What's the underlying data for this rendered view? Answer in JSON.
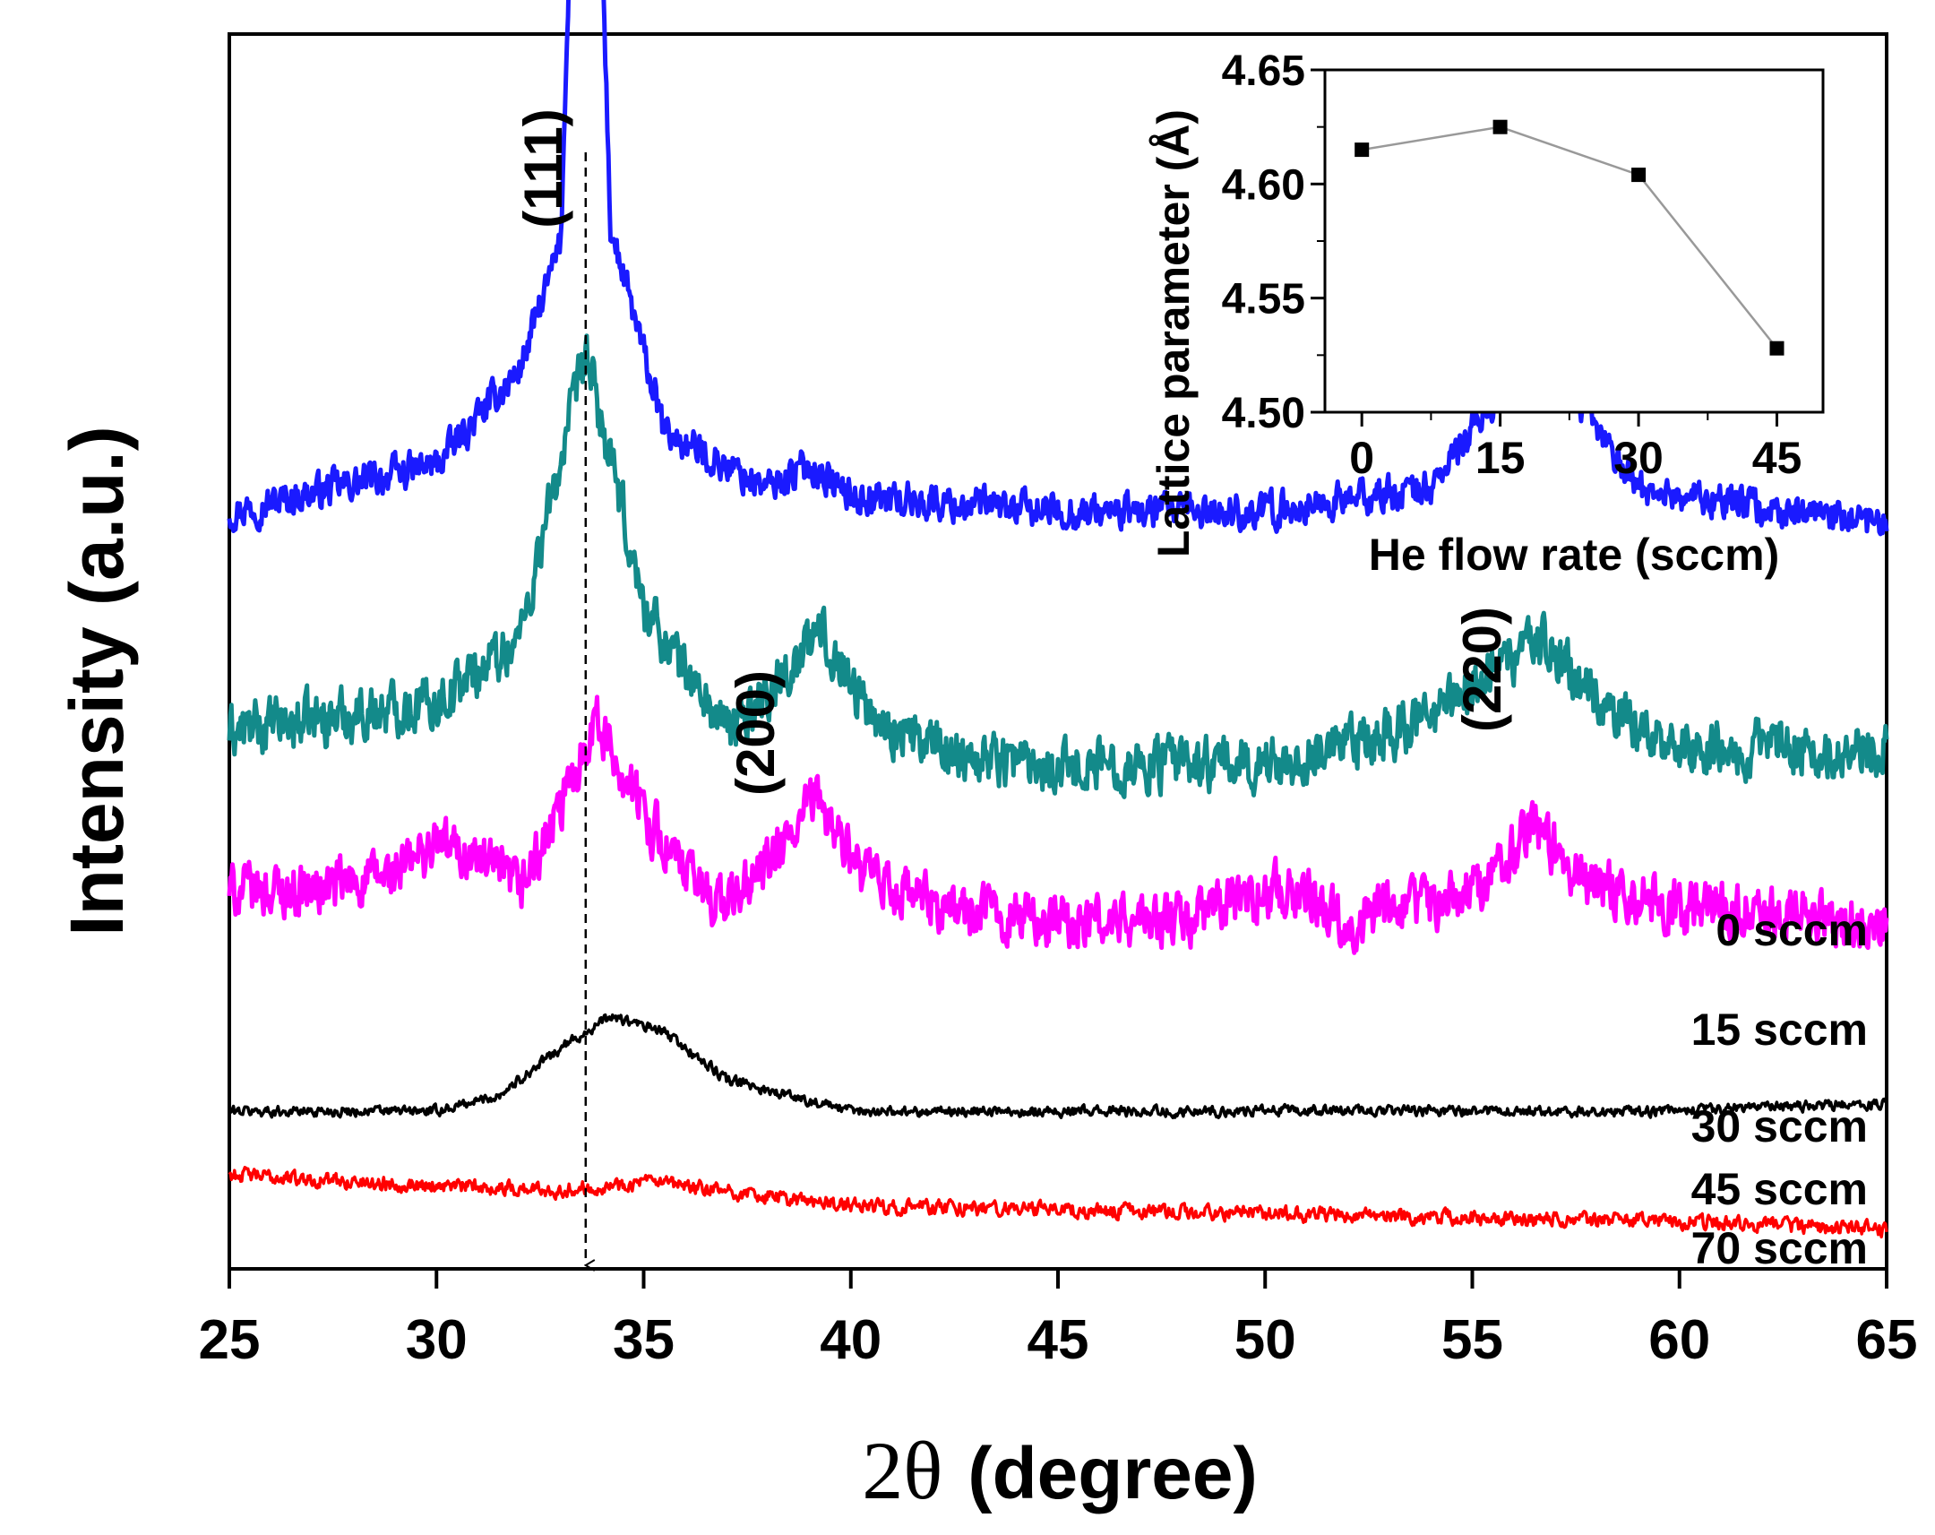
{
  "chart_data": [
    {
      "type": "line",
      "role": "main",
      "title": "",
      "xlabel_symbol": "2θ",
      "xlabel_text": "(degree)",
      "ylabel": "Intensity (a.u.)",
      "xlim": [
        25,
        65
      ],
      "xticks": [
        25,
        30,
        35,
        40,
        45,
        50,
        55,
        60,
        65
      ],
      "yticks": [],
      "grid": false,
      "peak_labels": [
        {
          "text": "(111)",
          "x": 33.6
        },
        {
          "text": "(200)",
          "x": 38.4
        },
        {
          "text": "(220)",
          "x": 55.7
        }
      ],
      "reference_line": {
        "x": 33.6,
        "style": "dashed-arrow"
      },
      "series": [
        {
          "name": "0 sccm",
          "color": "#1a1aff",
          "offset": 48,
          "noise": 1.7,
          "baseline": [
            [
              25,
              0
            ],
            [
              30,
              3
            ],
            [
              32,
              9
            ],
            [
              33,
              17
            ],
            [
              33.6,
              70
            ],
            [
              34.2,
              18
            ],
            [
              35.5,
              5
            ],
            [
              38,
              1.5
            ],
            [
              39,
              3
            ],
            [
              40,
              1
            ],
            [
              45,
              0
            ],
            [
              50,
              0
            ],
            [
              54,
              1.5
            ],
            [
              55.5,
              7
            ],
            [
              56.6,
              22
            ],
            [
              57.5,
              7
            ],
            [
              59,
              1.5
            ],
            [
              65,
              -1
            ]
          ]
        },
        {
          "name": "15 sccm",
          "color": "#138a8a",
          "offset": 34,
          "noise": 2.6,
          "baseline": [
            [
              25,
              0
            ],
            [
              30,
              2
            ],
            [
              32,
              6
            ],
            [
              33.6,
              24
            ],
            [
              35,
              8
            ],
            [
              37,
              0
            ],
            [
              38.5,
              4
            ],
            [
              39.3,
              6.5
            ],
            [
              40.5,
              1
            ],
            [
              42,
              -1
            ],
            [
              45,
              -2
            ],
            [
              50,
              -2
            ],
            [
              52,
              -1
            ],
            [
              54,
              1
            ],
            [
              55.5,
              4
            ],
            [
              56.6,
              6
            ],
            [
              58,
              2
            ],
            [
              60,
              -1
            ],
            [
              65,
              -1
            ]
          ]
        },
        {
          "name": "30 sccm",
          "color": "#ff00ff",
          "offset": 24,
          "noise": 2.6,
          "baseline": [
            [
              25,
              0
            ],
            [
              27,
              0
            ],
            [
              29,
              1
            ],
            [
              30,
              3
            ],
            [
              31,
              2
            ],
            [
              32,
              0
            ],
            [
              33,
              5
            ],
            [
              33.8,
              11
            ],
            [
              35,
              5
            ],
            [
              36,
              1
            ],
            [
              37,
              -1
            ],
            [
              38.5,
              3
            ],
            [
              39.2,
              6
            ],
            [
              40.2,
              1
            ],
            [
              42,
              -1
            ],
            [
              45,
              -2
            ],
            [
              48,
              -2
            ],
            [
              50,
              0
            ],
            [
              51,
              0
            ],
            [
              52,
              -2
            ],
            [
              55,
              0
            ],
            [
              56.5,
              4
            ],
            [
              57.5,
              1
            ],
            [
              60,
              -1
            ],
            [
              65,
              -2
            ]
          ]
        },
        {
          "name": "45 sccm",
          "color": "#000000",
          "offset": 10,
          "noise": 0.5,
          "baseline": [
            [
              25,
              0
            ],
            [
              30,
              0
            ],
            [
              31.5,
              1
            ],
            [
              33,
              4
            ],
            [
              34.2,
              6
            ],
            [
              35.5,
              5
            ],
            [
              37,
              2
            ],
            [
              38.5,
              1
            ],
            [
              40,
              0
            ],
            [
              45,
              0
            ],
            [
              55,
              0
            ],
            [
              60,
              0
            ],
            [
              65,
              0.5
            ]
          ]
        },
        {
          "name": "70 sccm",
          "color": "#ff0000",
          "offset": 5.5,
          "noise": 0.7,
          "baseline": [
            [
              25,
              0.5
            ],
            [
              28,
              0
            ],
            [
              33,
              -0.5
            ],
            [
              35,
              0
            ],
            [
              40,
              -1.5
            ],
            [
              50,
              -2
            ],
            [
              60,
              -2.5
            ],
            [
              65,
              -3
            ]
          ]
        }
      ]
    },
    {
      "type": "scatter",
      "role": "inset",
      "connected": true,
      "xlabel": "He flow rate (sccm)",
      "ylabel": "Lattice parameter (Å)",
      "xlim": [
        -4,
        50
      ],
      "ylim": [
        4.5,
        4.65
      ],
      "xticks": [
        0,
        15,
        30,
        45
      ],
      "yticks": [
        4.5,
        4.55,
        4.6,
        4.65
      ],
      "ytick_labels": [
        "4.50",
        "4.55",
        "4.60",
        "4.65"
      ],
      "x": [
        0,
        15,
        30,
        45
      ],
      "y": [
        4.615,
        4.625,
        4.604,
        4.528
      ]
    }
  ]
}
